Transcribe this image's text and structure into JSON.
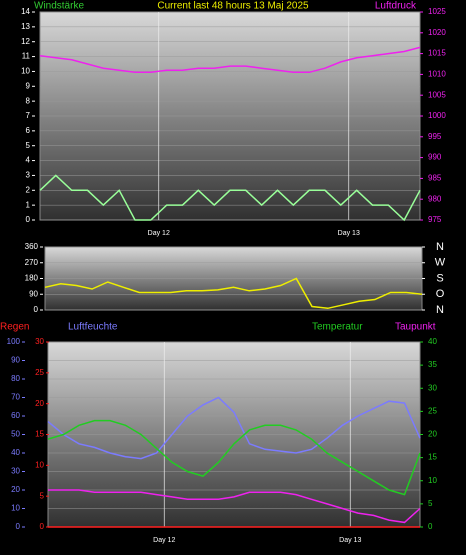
{
  "chart_data": [
    {
      "type": "line",
      "title": "Current last 48 hours 13 Maj 2025",
      "x": [
        0,
        2,
        4,
        6,
        8,
        10,
        12,
        14,
        16,
        18,
        20,
        22,
        24,
        26,
        28,
        30,
        32,
        34,
        36,
        38,
        40,
        42,
        44,
        46,
        48
      ],
      "xlim": [
        0,
        48
      ],
      "xticks": [
        {
          "value": 15,
          "label": "Day 12"
        },
        {
          "value": 39,
          "label": "Day 13"
        }
      ],
      "ylim": [
        0,
        14
      ],
      "yticks": [
        0,
        1,
        2,
        3,
        4,
        5,
        6,
        7,
        8,
        9,
        10,
        11,
        12,
        13,
        14
      ],
      "y2lim": [
        975,
        1025
      ],
      "y2ticks": [
        975,
        980,
        985,
        990,
        995,
        1000,
        1005,
        1010,
        1015,
        1020,
        1025
      ],
      "grid": true,
      "series": [
        {
          "name": "Windstärke",
          "color": "#99ff99",
          "label_color": "#33cc33",
          "axis": "y",
          "values": [
            2,
            3,
            2,
            2,
            1,
            2,
            0,
            0,
            1,
            1,
            2,
            1,
            2,
            2,
            1,
            2,
            1,
            2,
            2,
            1,
            2,
            1,
            1,
            0,
            2
          ]
        },
        {
          "name": "Luftdruck",
          "color": "#ee22ee",
          "label_color": "#ee22ee",
          "axis": "y2",
          "values": [
            1014.5,
            1014,
            1013.5,
            1012.5,
            1011.5,
            1011,
            1010.5,
            1010.5,
            1011,
            1011,
            1011.5,
            1011.5,
            1012,
            1012,
            1011.5,
            1011,
            1010.5,
            1010.5,
            1011.5,
            1013,
            1014,
            1014.5,
            1015,
            1015.5,
            1016.5
          ]
        }
      ]
    },
    {
      "type": "line",
      "x": [
        0,
        2,
        4,
        6,
        8,
        10,
        12,
        14,
        16,
        18,
        20,
        22,
        24,
        26,
        28,
        30,
        32,
        34,
        36,
        38,
        40,
        42,
        44,
        46,
        48
      ],
      "xlim": [
        0,
        48
      ],
      "ylim": [
        0,
        360
      ],
      "yticks": [
        0,
        90,
        180,
        270,
        360
      ],
      "y2lim": [
        0,
        360
      ],
      "y2ticks": [
        {
          "value": 0,
          "label": "N"
        },
        {
          "value": 90,
          "label": "O"
        },
        {
          "value": 180,
          "label": "S"
        },
        {
          "value": 270,
          "label": "W"
        },
        {
          "value": 360,
          "label": "N"
        }
      ],
      "grid": true,
      "series": [
        {
          "color": "#eeee00",
          "axis": "y",
          "values": [
            130,
            150,
            140,
            120,
            160,
            130,
            100,
            100,
            100,
            110,
            110,
            115,
            130,
            110,
            120,
            140,
            180,
            20,
            10,
            30,
            50,
            60,
            100,
            100,
            90
          ]
        }
      ]
    },
    {
      "type": "line",
      "x": [
        0,
        2,
        4,
        6,
        8,
        10,
        12,
        14,
        16,
        18,
        20,
        22,
        24,
        26,
        28,
        30,
        32,
        34,
        36,
        38,
        40,
        42,
        44,
        46,
        48
      ],
      "xlim": [
        0,
        48
      ],
      "xticks": [
        {
          "value": 15,
          "label": "Day 12"
        },
        {
          "value": 39,
          "label": "Day 13"
        }
      ],
      "ylim": [
        0,
        100
      ],
      "yticks": [
        0,
        10,
        20,
        30,
        40,
        50,
        60,
        70,
        80,
        90,
        100
      ],
      "y3lim": [
        0,
        30
      ],
      "y3ticks": [
        0,
        5,
        10,
        15,
        20,
        25,
        30
      ],
      "y2lim": [
        0,
        40
      ],
      "y2ticks": [
        0,
        5,
        10,
        15,
        20,
        25,
        30,
        35,
        40
      ],
      "grid": true,
      "series": [
        {
          "name": "Regen",
          "color": "#ff2020",
          "label_color": "#ff2020",
          "axis": "y3",
          "values": [
            0,
            0,
            0,
            0,
            0,
            0,
            0,
            0,
            0,
            0,
            0,
            0,
            0,
            0,
            0,
            0,
            0,
            0,
            0,
            0,
            0,
            0,
            0,
            0,
            0
          ]
        },
        {
          "name": "Luftfeuchte",
          "color": "#7b7bff",
          "label_color": "#7b7bff",
          "axis": "y",
          "values": [
            57,
            50,
            45,
            43,
            40,
            38,
            37,
            40,
            50,
            60,
            66,
            70,
            62,
            45,
            42,
            41,
            40,
            42,
            48,
            55,
            60,
            64,
            68,
            67,
            48
          ]
        },
        {
          "name": "Temperatur",
          "color": "#22cc22",
          "label_color": "#22cc22",
          "axis": "y2",
          "values": [
            19,
            20,
            22,
            23,
            23,
            22,
            20,
            17,
            14,
            12,
            11,
            14,
            18,
            21,
            22,
            22,
            21,
            19,
            16,
            14,
            12,
            10,
            8,
            7,
            16
          ]
        },
        {
          "name": "Taupunkt",
          "color": "#ee22ee",
          "label_color": "#ee22ee",
          "axis": "y2",
          "values": [
            8,
            8,
            8,
            7.5,
            7.5,
            7.5,
            7.5,
            7,
            6.5,
            6,
            6,
            6,
            6.5,
            7.5,
            7.5,
            7.5,
            7,
            6,
            5,
            4,
            3,
            2.5,
            1.5,
            1,
            4
          ]
        }
      ]
    }
  ]
}
